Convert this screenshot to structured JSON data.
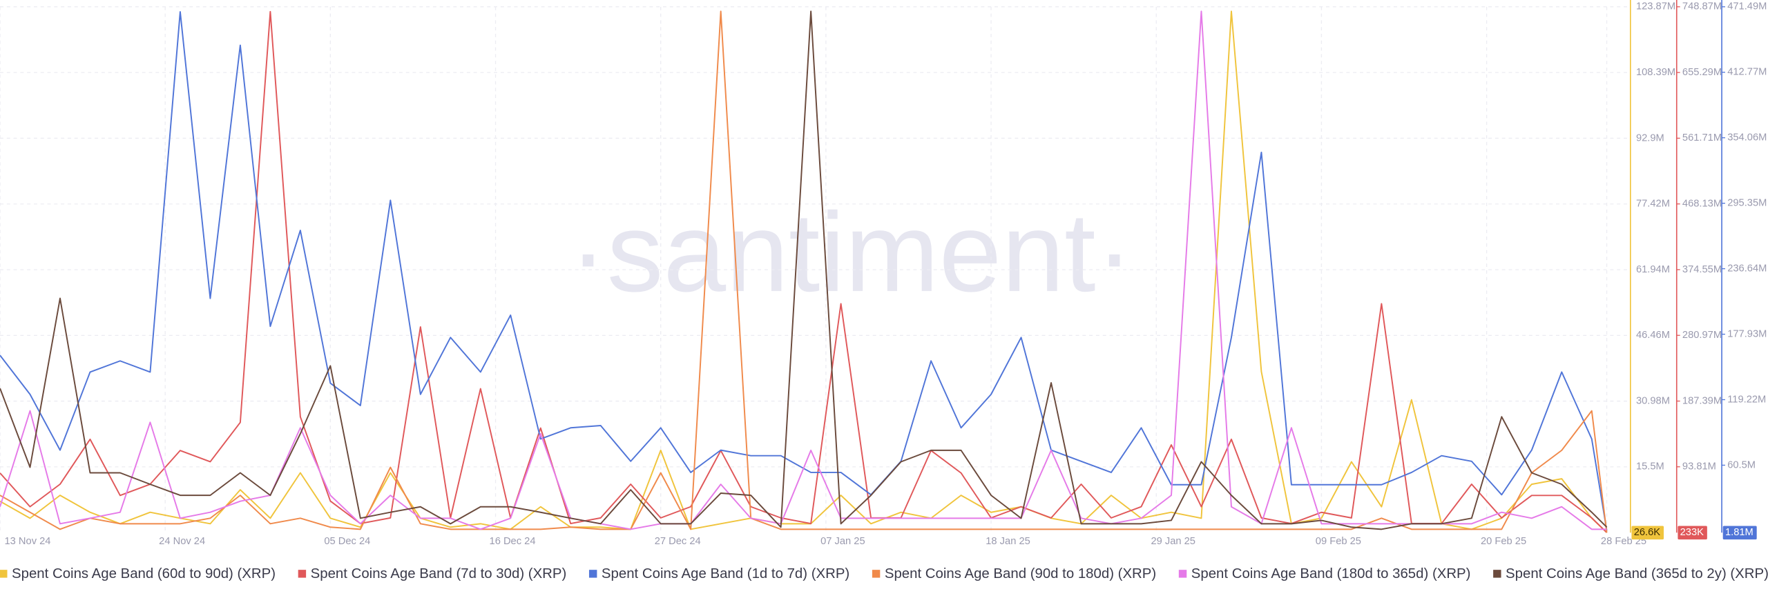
{
  "chart_data": {
    "type": "line",
    "watermark": "·santiment·",
    "x": [
      "13 Nov 24",
      "15 Nov 24",
      "17 Nov 24",
      "19 Nov 24",
      "21 Nov 24",
      "23 Nov 24",
      "25 Nov 24",
      "27 Nov 24",
      "29 Nov 24",
      "01 Dec 24",
      "03 Dec 24",
      "05 Dec 24",
      "07 Dec 24",
      "09 Dec 24",
      "11 Dec 24",
      "13 Dec 24",
      "15 Dec 24",
      "17 Dec 24",
      "19 Dec 24",
      "21 Dec 24",
      "23 Dec 24",
      "25 Dec 24",
      "27 Dec 24",
      "29 Dec 24",
      "31 Dec 24",
      "02 Jan 25",
      "04 Jan 25",
      "06 Jan 25",
      "08 Jan 25",
      "10 Jan 25",
      "12 Jan 25",
      "14 Jan 25",
      "16 Jan 25",
      "18 Jan 25",
      "20 Jan 25",
      "22 Jan 25",
      "24 Jan 25",
      "26 Jan 25",
      "28 Jan 25",
      "30 Jan 25",
      "01 Feb 25",
      "03 Feb 25",
      "05 Feb 25",
      "07 Feb 25",
      "09 Feb 25",
      "11 Feb 25",
      "13 Feb 25",
      "15 Feb 25",
      "17 Feb 25",
      "19 Feb 25",
      "21 Feb 25",
      "23 Feb 25",
      "25 Feb 25",
      "27 Feb 25",
      "28 Feb 25"
    ],
    "xlim": [
      "13 Nov 24",
      "28 Feb 25"
    ],
    "xticks": [
      "13 Nov 24",
      "24 Nov 24",
      "05 Dec 24",
      "16 Dec 24",
      "27 Dec 24",
      "07 Jan 25",
      "18 Jan 25",
      "29 Jan 25",
      "09 Feb 25",
      "20 Feb 25",
      "28 Feb 25"
    ],
    "grid": true,
    "ylim": [
      0,
      123.87
    ],
    "yticks": [
      {
        "value": 15.5,
        "label": "15.5M"
      },
      {
        "value": 30.98,
        "label": "30.98M"
      },
      {
        "value": 46.46,
        "label": "46.46M"
      },
      {
        "value": 61.94,
        "label": "61.94M"
      },
      {
        "value": 77.42,
        "label": "77.42M"
      },
      {
        "value": 92.9,
        "label": "92.9M"
      },
      {
        "value": 108.39,
        "label": "108.39M"
      },
      {
        "value": 123.87,
        "label": "123.87M"
      }
    ],
    "y2lim": [
      0,
      748.87
    ],
    "y2ticks": [
      {
        "value": 93.81,
        "label": "93.81M"
      },
      {
        "value": 187.39,
        "label": "187.39M"
      },
      {
        "value": 280.97,
        "label": "280.97M"
      },
      {
        "value": 374.55,
        "label": "374.55M"
      },
      {
        "value": 468.13,
        "label": "468.13M"
      },
      {
        "value": 561.71,
        "label": "561.71M"
      },
      {
        "value": 655.29,
        "label": "655.29M"
      },
      {
        "value": 748.87,
        "label": "748.87M"
      }
    ],
    "y3lim": [
      0,
      471.49
    ],
    "y3ticks": [
      {
        "value": 60.5,
        "label": "60.5M"
      },
      {
        "value": 119.22,
        "label": "119.22M"
      },
      {
        "value": 177.93,
        "label": "177.93M"
      },
      {
        "value": 236.64,
        "label": "236.64M"
      },
      {
        "value": 295.35,
        "label": "295.35M"
      },
      {
        "value": 354.06,
        "label": "354.06M"
      },
      {
        "value": 412.77,
        "label": "412.77M"
      },
      {
        "value": 471.49,
        "label": "471.49M"
      }
    ],
    "series": [
      {
        "name": "Spent Coins Age Band (60d to 90d) (XRP)",
        "color": "#f0c43c",
        "axis": "y",
        "last_label": "26.6K",
        "values": [
          7.4,
          3.4,
          8.8,
          4.8,
          2.1,
          4.8,
          3.4,
          2.1,
          10.1,
          3.4,
          14.1,
          3.4,
          1.3,
          14.1,
          3.4,
          1.3,
          2.1,
          0.8,
          6.1,
          1.3,
          1.3,
          0.8,
          19.4,
          0.8,
          2.1,
          3.4,
          2.1,
          2.1,
          8.8,
          2.1,
          4.8,
          3.4,
          8.8,
          4.8,
          6.1,
          3.4,
          2.1,
          8.8,
          3.4,
          4.8,
          3.4,
          122.8,
          37.9,
          2.1,
          3.4,
          16.7,
          6.1,
          31.3,
          2.1,
          0.8,
          3.4,
          11.4,
          12.7,
          3.4,
          0.0266
        ]
      },
      {
        "name": "Spent Coins Age Band (7d to 30d) (XRP)",
        "color": "#e0585a",
        "axis": "y2",
        "last_label": "233K",
        "values": [
          85,
          37,
          69,
          133,
          53,
          69,
          117,
          101,
          157,
          742,
          165,
          45,
          13,
          21,
          293,
          21,
          205,
          21,
          149,
          13,
          21,
          69,
          21,
          37,
          117,
          37,
          21,
          13,
          326,
          21,
          21,
          117,
          85,
          21,
          37,
          21,
          69,
          21,
          37,
          125,
          37,
          133,
          21,
          13,
          29,
          21,
          326,
          13,
          13,
          69,
          21,
          53,
          53,
          21,
          0.233
        ]
      },
      {
        "name": "Spent Coins Age Band (1d to 7d) (XRP)",
        "color": "#5075d8",
        "axis": "y3",
        "last_label": "1.81M",
        "values": [
          159,
          124,
          74,
          144,
          154,
          144,
          467,
          210,
          437,
          185,
          271,
          134,
          114,
          298,
          124,
          175,
          144,
          195,
          84,
          94,
          96,
          64,
          94,
          54,
          74,
          69,
          69,
          54,
          54,
          34,
          64,
          154,
          94,
          124,
          175,
          74,
          64,
          54,
          94,
          43,
          43,
          175,
          341,
          43,
          43,
          43,
          43,
          54,
          69,
          64,
          34,
          74,
          144,
          84,
          1.81
        ]
      },
      {
        "name": "Spent Coins Age Band (90d to 180d) (XRP)",
        "color": "#f08a4b",
        "axis": "y",
        "values": [
          8.8,
          4.8,
          0.8,
          3.4,
          2.1,
          2.1,
          2.1,
          3.4,
          8.8,
          2.1,
          3.4,
          1.3,
          0.8,
          15.4,
          2.1,
          0.8,
          0.8,
          0.8,
          0.8,
          1.3,
          0.8,
          0.8,
          14.1,
          0.8,
          122.8,
          3.4,
          0.8,
          0.8,
          0.8,
          0.8,
          0.8,
          0.8,
          0.8,
          0.8,
          0.8,
          0.8,
          0.8,
          0.8,
          0.8,
          0.8,
          0.8,
          0.8,
          0.8,
          0.8,
          0.8,
          0.8,
          3.4,
          0.8,
          0.8,
          0.8,
          0.8,
          14.1,
          19.4,
          28.7,
          0
        ]
      },
      {
        "name": "Spent Coins Age Band (180d to 365d) (XRP)",
        "color": "#e57ae8",
        "axis": "y",
        "values": [
          6.1,
          28.7,
          2.1,
          3.4,
          4.8,
          26.0,
          3.4,
          4.8,
          7.4,
          8.8,
          24.7,
          8.8,
          2.1,
          8.8,
          3.4,
          3.4,
          0.8,
          3.4,
          23.3,
          3.4,
          2.1,
          0.8,
          2.1,
          2.1,
          11.4,
          3.4,
          2.1,
          19.4,
          3.4,
          3.4,
          3.4,
          3.4,
          3.4,
          3.4,
          3.4,
          19.4,
          3.4,
          2.1,
          3.4,
          8.8,
          122.8,
          6.1,
          2.1,
          24.7,
          2.1,
          2.1,
          2.1,
          2.1,
          2.1,
          2.1,
          4.8,
          3.4,
          6.1,
          0.8,
          0.8
        ]
      },
      {
        "name": "Spent Coins Age Band (365d to 2y) (XRP)",
        "color": "#6b4a3c",
        "axis": "y",
        "values": [
          34,
          15.4,
          55.2,
          14.1,
          14.1,
          11.4,
          8.8,
          8.8,
          14.1,
          8.8,
          23.3,
          39.3,
          3.4,
          4.8,
          6.1,
          2.1,
          6.1,
          6.1,
          4.8,
          3.4,
          2.1,
          10.1,
          2.1,
          2.1,
          9.3,
          8.8,
          1.3,
          122.8,
          2.1,
          8.8,
          16.7,
          19.4,
          19.4,
          8.8,
          3.4,
          35.3,
          2.1,
          2.1,
          2.1,
          2.9,
          16.7,
          8.8,
          2.1,
          2.1,
          2.9,
          1.3,
          0.8,
          2.1,
          2.1,
          3.4,
          27.3,
          14.1,
          11.4,
          4.8,
          1.3
        ]
      }
    ]
  }
}
